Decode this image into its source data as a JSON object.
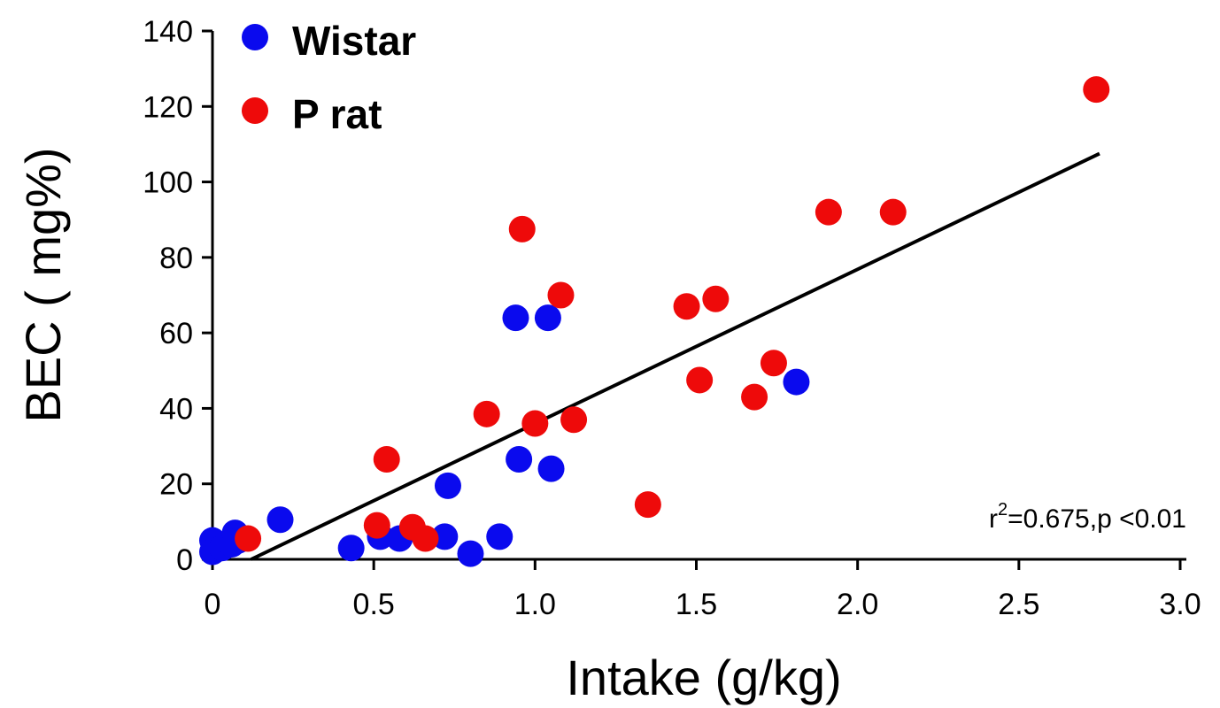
{
  "chart_data": {
    "type": "scatter",
    "xlabel": "Intake (g/kg)",
    "ylabel": "BEC ( mg%)",
    "xlim": [
      0,
      3.0
    ],
    "ylim": [
      0,
      140
    ],
    "xticks": [
      "0",
      "0.5",
      "1.0",
      "1.5",
      "2.0",
      "2.5",
      "3.0"
    ],
    "yticks": [
      "0",
      "20",
      "40",
      "60",
      "80",
      "100",
      "120",
      "140"
    ],
    "grid": false,
    "legend_position": "top-left",
    "series": [
      {
        "name": "Wistar",
        "color": "#0a0aee",
        "points": [
          [
            0.0,
            5
          ],
          [
            0.0,
            2
          ],
          [
            0.03,
            3
          ],
          [
            0.06,
            4
          ],
          [
            0.07,
            7
          ],
          [
            0.08,
            5
          ],
          [
            0.21,
            10.5
          ],
          [
            0.43,
            3
          ],
          [
            0.52,
            6
          ],
          [
            0.58,
            5.5
          ],
          [
            0.72,
            6
          ],
          [
            0.73,
            19.5
          ],
          [
            0.8,
            1.5
          ],
          [
            0.89,
            6
          ],
          [
            0.94,
            64
          ],
          [
            0.95,
            26.5
          ],
          [
            1.04,
            64
          ],
          [
            1.05,
            24
          ],
          [
            1.81,
            47
          ]
        ]
      },
      {
        "name": "P rat",
        "color": "#ee0a0a",
        "points": [
          [
            0.11,
            5.5
          ],
          [
            0.51,
            9
          ],
          [
            0.54,
            26.5
          ],
          [
            0.62,
            8.5
          ],
          [
            0.66,
            5.5
          ],
          [
            0.85,
            38.5
          ],
          [
            0.96,
            87.5
          ],
          [
            1.0,
            36
          ],
          [
            1.08,
            70
          ],
          [
            1.12,
            37
          ],
          [
            1.35,
            14.5
          ],
          [
            1.47,
            67
          ],
          [
            1.51,
            47.5
          ],
          [
            1.56,
            69
          ],
          [
            1.68,
            43
          ],
          [
            1.74,
            52
          ],
          [
            1.91,
            92
          ],
          [
            2.11,
            92
          ],
          [
            2.74,
            124.5
          ]
        ]
      }
    ],
    "regression": {
      "x": [
        0.12,
        2.75
      ],
      "y": [
        0,
        107.5
      ]
    },
    "annotation": {
      "r_prefix": "r",
      "superscript": "2",
      "text": "=0.675,p <0.01"
    }
  }
}
